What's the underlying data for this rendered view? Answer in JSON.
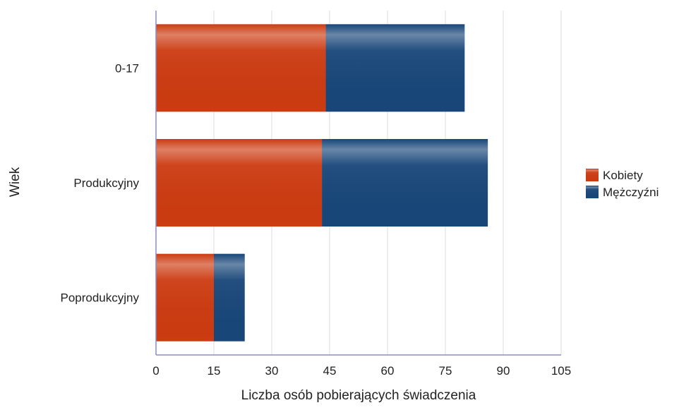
{
  "chart_data": {
    "type": "bar",
    "orientation": "horizontal",
    "stacked": true,
    "categories": [
      "0-17",
      "Produkcyjny",
      "Poprodukcyjny"
    ],
    "series": [
      {
        "name": "Kobiety",
        "values": [
          44,
          43,
          15
        ],
        "color": "#cc3b11"
      },
      {
        "name": "Mężczyźni",
        "values": [
          36,
          43,
          8
        ],
        "color": "#184679"
      }
    ],
    "x_ticks": [
      "0",
      "15",
      "30",
      "45",
      "60",
      "75",
      "90",
      "105"
    ],
    "xlim": [
      0,
      105
    ],
    "xlabel": "Liczba osób pobierających świadczenia",
    "ylabel": "Wiek",
    "grid": "vertical",
    "legend_position": "right"
  }
}
